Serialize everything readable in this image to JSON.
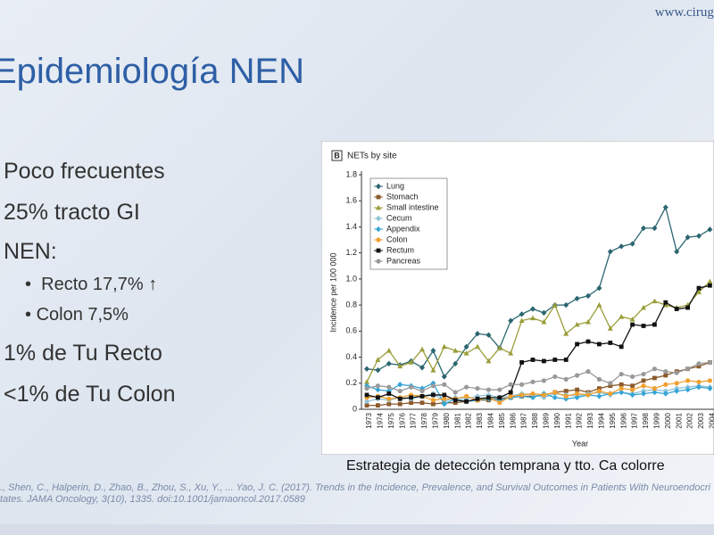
{
  "header": {
    "logo": "www.cirugi",
    "title": "Epidemiología  NEN"
  },
  "bullets": [
    "Poco frecuentes",
    "25% tracto GI",
    "NEN:"
  ],
  "sub_bullets": [
    "Recto 17,7% ↑",
    "Colon 7,5%"
  ],
  "bullets_after": [
    "1% de Tu  Recto",
    "<1% de Tu Colon"
  ],
  "caption": "Estrategia de detección temprana  y tto. Ca colorre",
  "citation": [
    "., Shen, C., Halperin, D., Zhao, B., Zhou, S., Xu, Y., ... Yao, J. C. (2017). Trends in the Incidence, Prevalence, and Survival Outcomes in Patients With Neuroendocri",
    "tates. JAMA Oncology, 3(10), 1335.  doi:10.1001/jamaoncol.2017.0589"
  ],
  "chart_data": {
    "type": "line",
    "panel": "B",
    "title": "NETs by site",
    "x_label": "Year",
    "y_label": "Incidence per 100 000",
    "categories": [
      "1973",
      "1974",
      "1975",
      "1976",
      "1977",
      "1978",
      "1979",
      "1980",
      "1981",
      "1982",
      "1983",
      "1984",
      "1985",
      "1986",
      "1987",
      "1988",
      "1989",
      "1990",
      "1991",
      "1992",
      "1993",
      "1994",
      "1995",
      "1996",
      "1997",
      "1998",
      "1999",
      "2000",
      "2001",
      "2002",
      "2003",
      "2004"
    ],
    "ylim": [
      0,
      1.8
    ],
    "yticks": [
      0,
      0.2,
      0.4,
      0.6,
      0.8,
      {
        "value": 1,
        "label": "1.0"
      },
      1.2,
      1.4,
      1.6,
      1.8
    ],
    "series": [
      {
        "name": "Lung",
        "color": "#2b6670",
        "marker": "diamond",
        "values": [
          0.31,
          0.3,
          0.35,
          0.34,
          0.37,
          0.32,
          0.45,
          0.25,
          0.35,
          0.48,
          0.58,
          0.57,
          0.47,
          0.68,
          0.73,
          0.77,
          0.74,
          0.8,
          0.8,
          0.85,
          0.87,
          0.93,
          1.21,
          1.25,
          1.27,
          1.39,
          1.39,
          1.55,
          1.21,
          1.32,
          1.33,
          1.38
        ]
      },
      {
        "name": "Stomach",
        "color": "#8b5a2b",
        "marker": "square",
        "values": [
          0.03,
          0.03,
          0.04,
          0.04,
          0.05,
          0.05,
          0.04,
          0.05,
          0.05,
          0.06,
          0.07,
          0.07,
          0.08,
          0.09,
          0.1,
          0.1,
          0.11,
          0.13,
          0.14,
          0.15,
          0.13,
          0.16,
          0.18,
          0.19,
          0.18,
          0.22,
          0.24,
          0.26,
          0.29,
          0.31,
          0.33,
          0.36
        ]
      },
      {
        "name": "Small intestine",
        "color": "#9a9e3a",
        "marker": "triangle",
        "values": [
          0.21,
          0.38,
          0.45,
          0.33,
          0.36,
          0.46,
          0.3,
          0.48,
          0.45,
          0.43,
          0.48,
          0.37,
          0.47,
          0.43,
          0.68,
          0.7,
          0.67,
          0.8,
          0.58,
          0.65,
          0.67,
          0.8,
          0.62,
          0.71,
          0.69,
          0.78,
          0.83,
          0.8,
          0.78,
          0.8,
          0.9,
          0.98
        ]
      },
      {
        "name": "Cecum",
        "color": "#8fc3d8",
        "marker": "diamond",
        "values": [
          0.06,
          0.08,
          0.07,
          0.09,
          0.08,
          0.1,
          0.12,
          0.06,
          0.09,
          0.08,
          0.1,
          0.11,
          0.09,
          0.1,
          0.12,
          0.11,
          0.09,
          0.12,
          0.11,
          0.1,
          0.12,
          0.13,
          0.11,
          0.13,
          0.12,
          0.14,
          0.15,
          0.14,
          0.16,
          0.17,
          0.18,
          0.17
        ]
      },
      {
        "name": "Appendix",
        "color": "#35a5d6",
        "marker": "diamond",
        "values": [
          0.18,
          0.15,
          0.14,
          0.19,
          0.18,
          0.16,
          0.2,
          0.04,
          0.08,
          0.06,
          0.07,
          0.08,
          0.07,
          0.09,
          0.1,
          0.09,
          0.12,
          0.09,
          0.08,
          0.09,
          0.11,
          0.1,
          0.12,
          0.13,
          0.11,
          0.12,
          0.13,
          0.12,
          0.14,
          0.15,
          0.17,
          0.16
        ]
      },
      {
        "name": "Colon",
        "color": "#f0a030",
        "marker": "circle",
        "values": [
          0.09,
          0.1,
          0.08,
          0.09,
          0.11,
          0.1,
          0.07,
          0.08,
          0.08,
          0.1,
          0.07,
          0.09,
          0.05,
          0.1,
          0.11,
          0.12,
          0.11,
          0.13,
          0.1,
          0.12,
          0.11,
          0.14,
          0.12,
          0.16,
          0.15,
          0.18,
          0.16,
          0.19,
          0.2,
          0.22,
          0.21,
          0.22
        ]
      },
      {
        "name": "Rectum",
        "color": "#111111",
        "marker": "square",
        "values": [
          0.11,
          0.09,
          0.12,
          0.08,
          0.09,
          0.1,
          0.11,
          0.11,
          0.07,
          0.06,
          0.08,
          0.09,
          0.09,
          0.13,
          0.36,
          0.38,
          0.37,
          0.38,
          0.38,
          0.5,
          0.52,
          0.5,
          0.51,
          0.48,
          0.65,
          0.64,
          0.65,
          0.82,
          0.77,
          0.78,
          0.93,
          0.95
        ]
      },
      {
        "name": "Pancreas",
        "color": "#999999",
        "marker": "circle",
        "values": [
          0.16,
          0.18,
          0.17,
          0.14,
          0.17,
          0.14,
          0.18,
          0.19,
          0.13,
          0.17,
          0.16,
          0.15,
          0.15,
          0.19,
          0.19,
          0.21,
          0.22,
          0.25,
          0.23,
          0.26,
          0.29,
          0.23,
          0.2,
          0.27,
          0.25,
          0.27,
          0.31,
          0.29,
          0.28,
          0.31,
          0.35,
          0.36
        ]
      }
    ]
  }
}
